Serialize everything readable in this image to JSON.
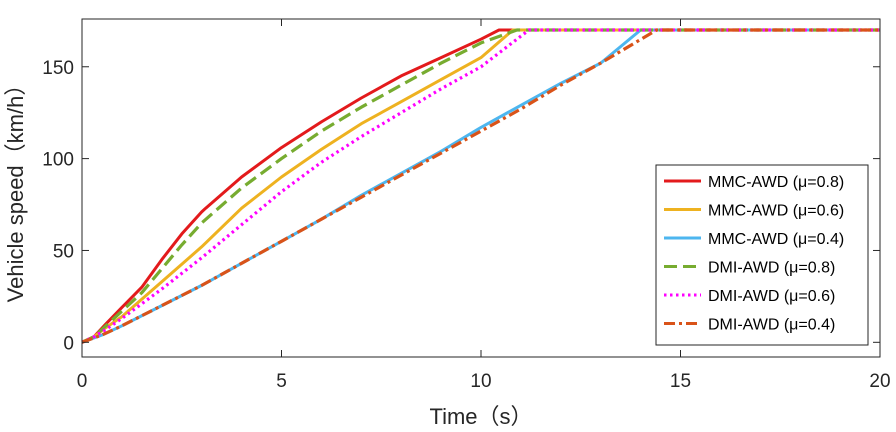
{
  "chart_data": {
    "type": "line",
    "xlabel": "Time（s）",
    "ylabel": "Vehicle speed（km/h）",
    "xlim": [
      0,
      20
    ],
    "ylim": [
      -8,
      176
    ],
    "xticks": [
      0,
      5,
      10,
      15,
      20
    ],
    "yticks": [
      0,
      50,
      100,
      150
    ],
    "grid": false,
    "legend_position": "right-middle",
    "series": [
      {
        "name": "MMC-AWD (μ=0.8)",
        "color": "#e31a1c",
        "style": "solid",
        "x": [
          0,
          0.3,
          0.6,
          1.0,
          1.5,
          2.0,
          2.5,
          3.0,
          3.1,
          4.0,
          5.0,
          6.0,
          7.0,
          8.0,
          9.0,
          10.0,
          10.45,
          20
        ],
        "y": [
          0,
          3,
          10,
          19,
          30,
          45,
          59,
          71,
          73,
          90,
          106,
          120,
          133,
          145,
          155,
          165,
          170,
          170
        ]
      },
      {
        "name": "MMC-AWD (μ=0.6)",
        "color": "#eeb220",
        "style": "solid",
        "x": [
          0,
          0.3,
          0.6,
          1.0,
          2.0,
          3.0,
          4.0,
          5.0,
          6.0,
          7.0,
          8.0,
          9.0,
          10.0,
          10.8,
          20
        ],
        "y": [
          0,
          3,
          8,
          14,
          33,
          52,
          73,
          90,
          105,
          119,
          131,
          143,
          155,
          170,
          170
        ]
      },
      {
        "name": "MMC-AWD (μ=0.4)",
        "color": "#4db6ef",
        "style": "solid",
        "x": [
          0,
          0.5,
          1.0,
          2.0,
          3.0,
          4.0,
          5.0,
          6.0,
          7.0,
          8.0,
          9.0,
          10.0,
          11.0,
          12.0,
          13.0,
          14.0,
          20
        ],
        "y": [
          0,
          4,
          9,
          20,
          31,
          43,
          55,
          67,
          80,
          92,
          104,
          117,
          129,
          141,
          152,
          170,
          170
        ]
      },
      {
        "name": "DMI-AWD (μ=0.8)",
        "color": "#77ac30",
        "style": "dashed",
        "x": [
          0,
          0.3,
          0.6,
          1.0,
          1.5,
          2.0,
          2.5,
          3.0,
          4.0,
          5.0,
          6.0,
          7.0,
          8.0,
          9.0,
          10.0,
          10.9,
          20
        ],
        "y": [
          0,
          3,
          9,
          17,
          27,
          40,
          53,
          65,
          84,
          100,
          115,
          128,
          140,
          152,
          163,
          170,
          170
        ]
      },
      {
        "name": "DMI-AWD (μ=0.6)",
        "color": "#ff00ff",
        "style": "dotted",
        "x": [
          0,
          0.3,
          0.6,
          1.0,
          2.0,
          3.0,
          4.0,
          5.0,
          6.0,
          7.0,
          8.0,
          9.0,
          10.0,
          11.2,
          20
        ],
        "y": [
          0,
          3,
          7,
          13,
          29,
          46,
          64,
          82,
          98,
          112,
          125,
          138,
          150,
          170,
          170
        ]
      },
      {
        "name": "DMI-AWD (μ=0.4)",
        "color": "#d95319",
        "style": "dashdot",
        "x": [
          0,
          0.5,
          1.0,
          2.0,
          3.0,
          4.0,
          5.0,
          6.0,
          7.0,
          8.0,
          9.0,
          10.0,
          11.0,
          12.0,
          13.0,
          14.4,
          20
        ],
        "y": [
          0,
          4,
          9,
          20,
          31,
          43,
          55,
          67,
          79,
          91,
          103,
          115,
          127,
          140,
          152,
          170,
          170
        ]
      }
    ]
  }
}
